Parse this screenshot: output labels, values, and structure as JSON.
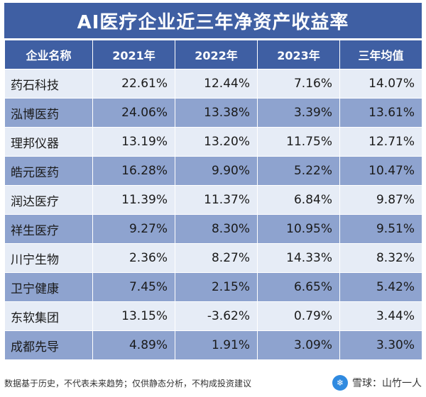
{
  "title": "AI医疗企业近三年净资产收益率",
  "columns": [
    "企业名称",
    "2021年",
    "2022年",
    "2023年",
    "三年均值"
  ],
  "rows": [
    {
      "name": "药石科技",
      "y2021": "22.61%",
      "y2022": "12.44%",
      "y2023": "7.16%",
      "avg": "14.07%"
    },
    {
      "name": "泓博医药",
      "y2021": "24.06%",
      "y2022": "13.38%",
      "y2023": "3.39%",
      "avg": "13.61%"
    },
    {
      "name": "理邦仪器",
      "y2021": "13.19%",
      "y2022": "13.20%",
      "y2023": "11.75%",
      "avg": "12.71%"
    },
    {
      "name": "皓元医药",
      "y2021": "16.28%",
      "y2022": "9.90%",
      "y2023": "5.22%",
      "avg": "10.47%"
    },
    {
      "name": "润达医疗",
      "y2021": "11.39%",
      "y2022": "11.37%",
      "y2023": "6.84%",
      "avg": "9.87%"
    },
    {
      "name": "祥生医疗",
      "y2021": "9.27%",
      "y2022": "8.30%",
      "y2023": "10.95%",
      "avg": "9.51%"
    },
    {
      "name": "川宁生物",
      "y2021": "2.36%",
      "y2022": "8.27%",
      "y2023": "14.33%",
      "avg": "8.32%"
    },
    {
      "name": "卫宁健康",
      "y2021": "7.45%",
      "y2022": "2.15%",
      "y2023": "6.65%",
      "avg": "5.42%"
    },
    {
      "name": "东软集团",
      "y2021": "13.15%",
      "y2022": "-3.62%",
      "y2023": "0.79%",
      "avg": "3.44%"
    },
    {
      "name": "成都先导",
      "y2021": "4.89%",
      "y2022": "1.91%",
      "y2023": "3.09%",
      "avg": "3.30%"
    }
  ],
  "footer": {
    "disclaimer": "数据基于历史，不代表未来趋势；仅供静态分析，不构成投资建议",
    "brand_icon": "snowball-logo-icon",
    "brand_text": "雪球：山竹一人"
  },
  "colors": {
    "header": "#3f5fa3",
    "row_light": "#e6ecf6",
    "row_dark": "#8ea3cf"
  },
  "chart_data": {
    "type": "table",
    "title": "AI医疗企业近三年净资产收益率",
    "columns": [
      "企业名称",
      "2021年",
      "2022年",
      "2023年",
      "三年均值"
    ],
    "categories": [
      "药石科技",
      "泓博医药",
      "理邦仪器",
      "皓元医药",
      "润达医疗",
      "祥生医疗",
      "川宁生物",
      "卫宁健康",
      "东软集团",
      "成都先导"
    ],
    "series": [
      {
        "name": "2021年",
        "values": [
          22.61,
          24.06,
          13.19,
          16.28,
          11.39,
          9.27,
          2.36,
          7.45,
          13.15,
          4.89
        ]
      },
      {
        "name": "2022年",
        "values": [
          12.44,
          13.38,
          13.2,
          9.9,
          11.37,
          8.3,
          8.27,
          2.15,
          -3.62,
          1.91
        ]
      },
      {
        "name": "2023年",
        "values": [
          7.16,
          3.39,
          11.75,
          5.22,
          6.84,
          10.95,
          14.33,
          6.65,
          0.79,
          3.09
        ]
      },
      {
        "name": "三年均值",
        "values": [
          14.07,
          13.61,
          12.71,
          10.47,
          9.87,
          9.51,
          8.32,
          5.42,
          3.44,
          3.3
        ]
      }
    ]
  }
}
